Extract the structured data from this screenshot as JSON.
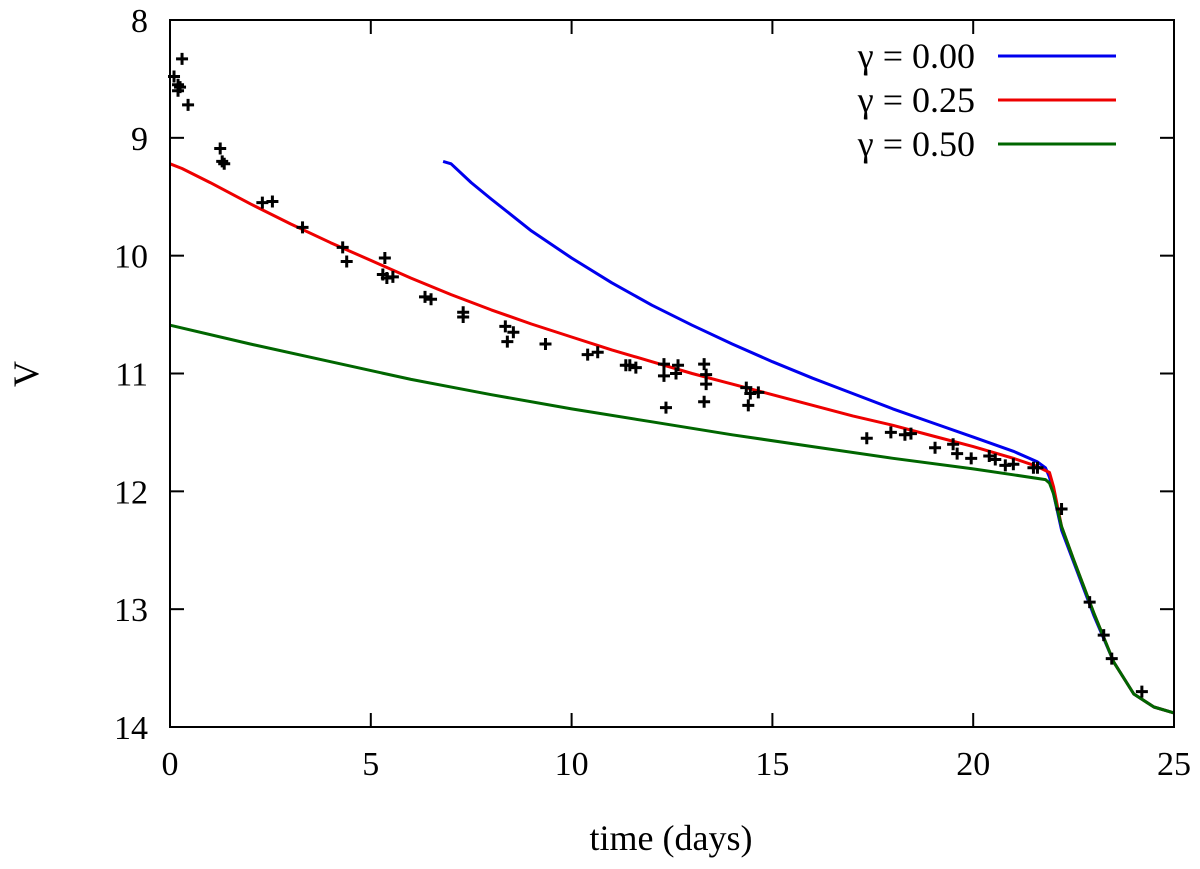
{
  "chart_data": {
    "type": "line",
    "title": "",
    "xlabel": "time (days)",
    "ylabel": "V",
    "xlim": [
      0,
      25
    ],
    "ylim": [
      8,
      14
    ],
    "y_inverted": true,
    "x_ticks": [
      0,
      5,
      10,
      15,
      20,
      25
    ],
    "y_ticks": [
      8,
      9,
      10,
      11,
      12,
      13,
      14
    ],
    "grid": false,
    "legend_position": "top-right",
    "series": [
      {
        "name": "γ = 0.00",
        "color": "#0000ee",
        "x": [
          6.8,
          7.0,
          7.5,
          8.0,
          9.0,
          10.0,
          11.0,
          12.0,
          13.0,
          14.0,
          15.0,
          16.0,
          17.0,
          18.0,
          19.0,
          20.0,
          21.0,
          21.6,
          21.8,
          21.9,
          22.0,
          22.2,
          22.5,
          23.0,
          23.5,
          24.0,
          24.5,
          25.0
        ],
        "y": [
          9.2,
          9.22,
          9.38,
          9.52,
          9.79,
          10.02,
          10.23,
          10.42,
          10.59,
          10.75,
          10.9,
          11.04,
          11.17,
          11.3,
          11.42,
          11.54,
          11.66,
          11.75,
          11.8,
          11.88,
          12.02,
          12.33,
          12.6,
          13.05,
          13.45,
          13.72,
          13.83,
          13.88
        ]
      },
      {
        "name": "γ = 0.25",
        "color": "#ee0000",
        "x": [
          0.0,
          0.3,
          1.0,
          2.0,
          3.0,
          4.0,
          5.0,
          6.0,
          7.0,
          8.0,
          9.0,
          10.0,
          11.0,
          12.0,
          13.0,
          14.0,
          15.0,
          16.0,
          17.0,
          18.0,
          19.0,
          20.0,
          21.0,
          21.6,
          21.9,
          22.0,
          22.2,
          22.5,
          23.0,
          23.5,
          24.0,
          24.5,
          25.0
        ],
        "y": [
          9.22,
          9.26,
          9.38,
          9.56,
          9.73,
          9.89,
          10.04,
          10.19,
          10.33,
          10.46,
          10.58,
          10.69,
          10.8,
          10.9,
          11.0,
          11.09,
          11.18,
          11.27,
          11.36,
          11.44,
          11.53,
          11.62,
          11.72,
          11.79,
          11.84,
          11.96,
          12.3,
          12.58,
          13.03,
          13.45,
          13.72,
          13.83,
          13.88
        ]
      },
      {
        "name": "γ = 0.50",
        "color": "#006600",
        "x": [
          0.0,
          2.0,
          4.0,
          6.0,
          8.0,
          10.0,
          12.0,
          14.0,
          16.0,
          18.0,
          20.0,
          21.0,
          21.8,
          21.9,
          22.0,
          22.2,
          22.5,
          23.0,
          23.5,
          24.0,
          24.5,
          25.0
        ],
        "y": [
          10.59,
          10.75,
          10.9,
          11.05,
          11.18,
          11.3,
          11.41,
          11.52,
          11.62,
          11.72,
          11.81,
          11.86,
          11.9,
          11.93,
          12.02,
          12.3,
          12.58,
          13.03,
          13.45,
          13.72,
          13.83,
          13.88
        ]
      }
    ],
    "points": {
      "marker": "+",
      "color": "#000000",
      "x": [
        0.1,
        0.2,
        0.25,
        0.3,
        0.2,
        0.45,
        1.25,
        1.3,
        1.35,
        2.3,
        2.55,
        3.3,
        4.3,
        4.4,
        5.3,
        5.4,
        5.35,
        5.55,
        6.35,
        6.5,
        7.3,
        7.3,
        8.35,
        8.4,
        8.55,
        9.35,
        10.4,
        10.65,
        11.35,
        11.45,
        11.6,
        12.3,
        12.35,
        12.3,
        12.65,
        12.6,
        13.3,
        13.35,
        13.35,
        13.3,
        14.35,
        14.45,
        14.4,
        14.65,
        17.35,
        17.95,
        18.3,
        18.45,
        19.05,
        19.5,
        19.6,
        19.95,
        20.4,
        20.55,
        20.8,
        21.0,
        21.5,
        21.6,
        22.2,
        22.9,
        23.25,
        23.45,
        24.2
      ],
      "y": [
        8.48,
        8.55,
        8.57,
        8.33,
        8.6,
        8.72,
        9.09,
        9.2,
        9.22,
        9.55,
        9.54,
        9.76,
        9.93,
        10.05,
        10.16,
        10.19,
        10.02,
        10.18,
        10.35,
        10.37,
        10.48,
        10.52,
        10.6,
        10.73,
        10.65,
        10.75,
        10.84,
        10.82,
        10.93,
        10.93,
        10.95,
        11.02,
        11.29,
        10.92,
        10.93,
        11.0,
        10.92,
        11.01,
        11.09,
        11.24,
        11.12,
        11.17,
        11.27,
        11.16,
        11.55,
        11.5,
        11.52,
        11.51,
        11.63,
        11.6,
        11.68,
        11.72,
        11.7,
        11.73,
        11.78,
        11.77,
        11.8,
        11.8,
        12.15,
        12.94,
        13.22,
        13.42,
        13.7
      ]
    }
  }
}
